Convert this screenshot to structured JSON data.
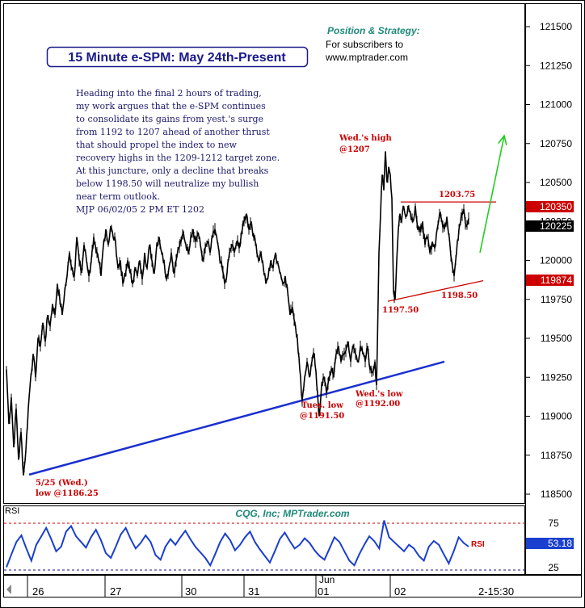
{
  "title": "15 Minute e-SPM: May 24th-Present",
  "position_strategy": {
    "heading": "Position & Strategy:",
    "line1": "For subscribers to",
    "line2": "www.mptrader.com"
  },
  "commentary": [
    "Heading into the final 2 hours of trading,",
    "my work argues that the e-SPM continues",
    "to consolidate its gains from yest.'s surge",
    "from 1192 to 1207 ahead of another thrust",
    "that should propel the index to new",
    "recovery highs in the 1209-1212 target zone.",
    "At this juncture, only a decline that breaks",
    "below 1198.50 will neutralize my bullish",
    "near term outlook.",
    "MJP 06/02/05 2 PM ET 1202"
  ],
  "annotations": {
    "wed_high_1": "Wed.'s high",
    "wed_high_2": "@1207",
    "level_1203": "1203.75",
    "level_1197": "1197.50",
    "level_1198": "1198.50",
    "tues_low_1": "Tues. low",
    "tues_low_2": "@1191.50",
    "wed_low_1": "Wed.'s low",
    "wed_low_2": "@1192.00",
    "may25_1": "5/25 (Wed.)",
    "may25_2": "low @1186.25"
  },
  "price_axis": {
    "ticks": [
      "121500",
      "121250",
      "121000",
      "120750",
      "120500",
      "120250",
      "120000",
      "119750",
      "119500",
      "119250",
      "119000",
      "118750",
      "118500"
    ],
    "marker_red_top": "120350",
    "marker_black": "120225",
    "marker_red_bottom": "119874"
  },
  "rsi_panel": {
    "label": "RSI",
    "source": "CQG, Inc; MPTrader.com",
    "series_label": "RSI",
    "ticks": [
      "75",
      "25"
    ],
    "current_value": "53.18"
  },
  "time_axis": {
    "labels": [
      "26",
      "27",
      "30",
      "31",
      "01",
      "02"
    ],
    "month_label": "Jun",
    "timestamp": "2-15:30"
  },
  "colors": {
    "price_line": "#000000",
    "trendline": "#1a2fcf",
    "annotation_red": "#cc0000",
    "arrow_green": "#22cc22",
    "title_border": "#1a1a8c",
    "strategy_heading": "#1f8a7a"
  },
  "chart_data": {
    "type": "line",
    "title": "15 Minute e-SPM: May 24th-Present",
    "ylim": [
      11850,
      12160
    ],
    "price_series": [
      [
        0,
        11930
      ],
      [
        3,
        11895
      ],
      [
        6,
        11912
      ],
      [
        9,
        11880
      ],
      [
        12,
        11905
      ],
      [
        15,
        11872
      ],
      [
        18,
        11890
      ],
      [
        21,
        11862
      ],
      [
        24,
        11878
      ],
      [
        27,
        11905
      ],
      [
        30,
        11925
      ],
      [
        33,
        11940
      ],
      [
        36,
        11925
      ],
      [
        39,
        11950
      ],
      [
        42,
        11945
      ],
      [
        45,
        11960
      ],
      [
        48,
        11948
      ],
      [
        51,
        11965
      ],
      [
        54,
        11958
      ],
      [
        57,
        11972
      ],
      [
        60,
        11965
      ],
      [
        63,
        11985
      ],
      [
        66,
        11975
      ],
      [
        69,
        11965
      ],
      [
        72,
        11980
      ],
      [
        75,
        11990
      ],
      [
        78,
        12005
      ],
      [
        81,
        11995
      ],
      [
        84,
        11990
      ],
      [
        87,
        12015
      ],
      [
        90,
        12000
      ],
      [
        93,
        11992
      ],
      [
        96,
        12010
      ],
      [
        99,
        12000
      ],
      [
        102,
        11990
      ],
      [
        105,
        12000
      ],
      [
        108,
        12015
      ],
      [
        111,
        12005
      ],
      [
        114,
        12000
      ],
      [
        117,
        11990
      ],
      [
        120,
        12010
      ],
      [
        123,
        12020
      ],
      [
        126,
        12010
      ],
      [
        129,
        12022
      ],
      [
        132,
        12015
      ],
      [
        135,
        12012
      ],
      [
        138,
        11995
      ],
      [
        141,
        12000
      ],
      [
        144,
        11985
      ],
      [
        147,
        11990
      ],
      [
        150,
        12000
      ],
      [
        153,
        11992
      ],
      [
        156,
        11985
      ],
      [
        159,
        11995
      ],
      [
        162,
        11990
      ],
      [
        165,
        12000
      ],
      [
        168,
        11988
      ],
      [
        171,
        12005
      ],
      [
        174,
        11995
      ],
      [
        177,
        12010
      ],
      [
        180,
        12000
      ],
      [
        183,
        11992
      ],
      [
        186,
        12010
      ],
      [
        189,
        12015
      ],
      [
        192,
        12005
      ],
      [
        195,
        12000
      ],
      [
        198,
        11988
      ],
      [
        201,
        11995
      ],
      [
        204,
        12005
      ],
      [
        207,
        11992
      ],
      [
        210,
        12000
      ],
      [
        213,
        12008
      ],
      [
        216,
        12012
      ],
      [
        219,
        12018
      ],
      [
        222,
        12010
      ],
      [
        225,
        12005
      ],
      [
        228,
        12015
      ],
      [
        231,
        12020
      ],
      [
        234,
        12012
      ],
      [
        237,
        12018
      ],
      [
        240,
        12010
      ],
      [
        243,
        12000
      ],
      [
        246,
        12008
      ],
      [
        249,
        12012
      ],
      [
        252,
        12005
      ],
      [
        255,
        12015
      ],
      [
        258,
        12020
      ],
      [
        261,
        12012
      ],
      [
        264,
        12000
      ],
      [
        267,
        11995
      ],
      [
        270,
        11985
      ],
      [
        273,
        11992
      ],
      [
        276,
        12005
      ],
      [
        279,
        12010
      ],
      [
        282,
        12005
      ],
      [
        285,
        12012
      ],
      [
        288,
        12008
      ],
      [
        291,
        12018
      ],
      [
        294,
        12025
      ],
      [
        297,
        12030
      ],
      [
        300,
        12020
      ],
      [
        303,
        12025
      ],
      [
        306,
        12015
      ],
      [
        309,
        12010
      ],
      [
        312,
        12000
      ],
      [
        315,
        12005
      ],
      [
        318,
        11995
      ],
      [
        321,
        11985
      ],
      [
        324,
        11990
      ],
      [
        327,
        12000
      ],
      [
        330,
        11995
      ],
      [
        333,
        12005
      ],
      [
        336,
        11998
      ],
      [
        339,
        11992
      ],
      [
        342,
        11985
      ],
      [
        345,
        11990
      ],
      [
        348,
        11980
      ],
      [
        351,
        11965
      ],
      [
        354,
        11970
      ],
      [
        357,
        11960
      ],
      [
        360,
        11950
      ],
      [
        363,
        11930
      ],
      [
        366,
        11910
      ],
      [
        369,
        11925
      ],
      [
        372,
        11935
      ],
      [
        375,
        11925
      ],
      [
        378,
        11935
      ],
      [
        381,
        11940
      ],
      [
        384,
        11920
      ],
      [
        387,
        11900
      ],
      [
        390,
        11920
      ],
      [
        393,
        11925
      ],
      [
        396,
        11915
      ],
      [
        399,
        11925
      ],
      [
        402,
        11930
      ],
      [
        405,
        11925
      ],
      [
        408,
        11940
      ],
      [
        411,
        11945
      ],
      [
        414,
        11935
      ],
      [
        417,
        11940
      ],
      [
        420,
        11942
      ],
      [
        423,
        11948
      ],
      [
        426,
        11935
      ],
      [
        429,
        11945
      ],
      [
        432,
        11940
      ],
      [
        435,
        11935
      ],
      [
        438,
        11945
      ],
      [
        441,
        11940
      ],
      [
        444,
        11935
      ],
      [
        447,
        11945
      ],
      [
        450,
        11930
      ],
      [
        453,
        11928
      ],
      [
        456,
        11935
      ],
      [
        458,
        11920
      ],
      [
        459,
        11945
      ],
      [
        461,
        12005
      ],
      [
        463,
        12030
      ],
      [
        465,
        12055
      ],
      [
        467,
        12045
      ],
      [
        469,
        12070
      ],
      [
        471,
        12050
      ],
      [
        473,
        12060
      ],
      [
        475,
        12055
      ],
      [
        477,
        12040
      ],
      [
        479,
        11980
      ],
      [
        481,
        11975
      ],
      [
        483,
        12000
      ],
      [
        485,
        12020
      ],
      [
        487,
        12030
      ],
      [
        489,
        12025
      ],
      [
        491,
        12035
      ],
      [
        494,
        12028
      ],
      [
        497,
        12035
      ],
      [
        500,
        12030
      ],
      [
        503,
        12025
      ],
      [
        506,
        12035
      ],
      [
        509,
        12020
      ],
      [
        512,
        12018
      ],
      [
        515,
        12025
      ],
      [
        518,
        12010
      ],
      [
        521,
        12015
      ],
      [
        524,
        12005
      ],
      [
        527,
        12012
      ],
      [
        530,
        12008
      ],
      [
        533,
        12020
      ],
      [
        536,
        12030
      ],
      [
        539,
        12025
      ],
      [
        542,
        12020
      ],
      [
        545,
        12028
      ],
      [
        548,
        12015
      ],
      [
        551,
        12000
      ],
      [
        554,
        11990
      ],
      [
        557,
        12005
      ],
      [
        560,
        12020
      ],
      [
        563,
        12030
      ],
      [
        566,
        12033
      ],
      [
        569,
        12022
      ],
      [
        572,
        12027
      ]
    ],
    "trendline_support": [
      [
        28,
        11862.5
      ],
      [
        542,
        11935
      ]
    ],
    "resistance_line": [
      [
        488,
        12037.5
      ],
      [
        606,
        12037.5
      ]
    ],
    "rising_support": [
      [
        472,
        11973.75
      ],
      [
        590,
        11987
      ]
    ],
    "arrow": {
      "from": [
        586,
        12005
      ],
      "to": [
        616,
        12080
      ]
    },
    "rsi_values": [
      28,
      42,
      55,
      62,
      48,
      35,
      52,
      61,
      70,
      58,
      45,
      50,
      66,
      72,
      61,
      55,
      49,
      60,
      68,
      57,
      43,
      38,
      50,
      63,
      70,
      58,
      48,
      54,
      62,
      55,
      41,
      36,
      50,
      58,
      52,
      60,
      67,
      58,
      50,
      44,
      38,
      30,
      42,
      55,
      64,
      57,
      46,
      52,
      60,
      66,
      55,
      47,
      40,
      33,
      45,
      58,
      65,
      56,
      48,
      52,
      59,
      54,
      46,
      40,
      36,
      48,
      60,
      55,
      45,
      35,
      30,
      42,
      52,
      61,
      56,
      48,
      78,
      60,
      55,
      50,
      45,
      52,
      48,
      40,
      35,
      50,
      56,
      52,
      42,
      32,
      45,
      60,
      54,
      50
    ]
  }
}
